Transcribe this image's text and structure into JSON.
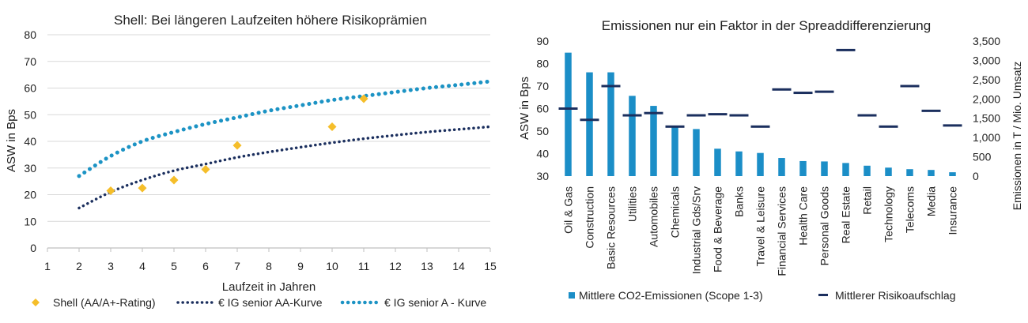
{
  "colors": {
    "diamond": "#F5BE2A",
    "aa_curve": "#1B2F5E",
    "a_curve": "#1C93C4",
    "bar": "#1B8EC7",
    "spread_mark": "#1B2F5E",
    "axis_line": "#BFBFBF",
    "grid": "#D9D9D9",
    "text": "#222222"
  },
  "chart_data": [
    {
      "type": "scatter",
      "title": "Shell: Bei längeren Laufzeiten höhere Risikoprämien",
      "xlabel": "Laufzeit in Jahren",
      "ylabel": "ASW in Bps",
      "xlim": [
        1,
        15
      ],
      "ylim": [
        0,
        80
      ],
      "xticks": [
        1,
        2,
        3,
        4,
        5,
        6,
        7,
        8,
        9,
        10,
        11,
        12,
        13,
        14,
        15
      ],
      "yticks": [
        0,
        10,
        20,
        30,
        40,
        50,
        60,
        70,
        80
      ],
      "grid": true,
      "legend_position": "bottom",
      "series": [
        {
          "name": "Shell (AA/A+-Rating)",
          "kind": "points",
          "x": [
            3,
            4,
            5,
            6,
            7,
            10,
            11
          ],
          "y": [
            21.5,
            22.5,
            25.5,
            29.5,
            38.5,
            45.5,
            56
          ]
        },
        {
          "name": "€ IG senior AA-Kurve",
          "kind": "dotted-line",
          "x": [
            2,
            3,
            4,
            5,
            6,
            7,
            8,
            9,
            10,
            11,
            12,
            13,
            14,
            15
          ],
          "y": [
            15,
            21,
            25.5,
            29,
            31.5,
            34,
            36,
            37.8,
            39.5,
            41,
            42.3,
            43.5,
            44.5,
            45.5
          ]
        },
        {
          "name": "€ IG senior A - Kurve",
          "kind": "dotted-line",
          "x": [
            2,
            3,
            4,
            5,
            6,
            7,
            8,
            9,
            10,
            11,
            12,
            13,
            14,
            15
          ],
          "y": [
            27,
            34.5,
            40,
            43.5,
            46.5,
            49,
            51.5,
            53.5,
            55.5,
            57,
            58.5,
            60,
            61.2,
            62.5
          ]
        }
      ]
    },
    {
      "type": "bar",
      "title": "Emissionen nur ein Faktor in der Spreaddifferenzierung",
      "ylabel": "ASW in Bps",
      "y2label": "Emissionen in T / Mio. Umsatz",
      "ylim": [
        30,
        90
      ],
      "y2lim": [
        0,
        3500
      ],
      "yticks": [
        30,
        40,
        50,
        60,
        70,
        80,
        90
      ],
      "y2ticks": [
        "0",
        "500",
        "1,000",
        "1,500",
        "2,000",
        "2,500",
        "3,000",
        "3,500"
      ],
      "y2tick_values": [
        0,
        500,
        1000,
        1500,
        2000,
        2500,
        3000,
        3500
      ],
      "grid": false,
      "legend_position": "bottom",
      "categories": [
        "Oil & Gas",
        "Construction",
        "Basic Resources",
        "Utilities",
        "Automobiles",
        "Chemicals",
        "Industrial Gds/Srv",
        "Food & Beverage",
        "Banks",
        "Travel & Leisure",
        "Financial Services",
        "Health Care",
        "Personal Goods",
        "Real Estate",
        "Retail",
        "Technology",
        "Telecoms",
        "Media",
        "Insurance"
      ],
      "series": [
        {
          "name": "Mittlere CO2-Emissionen (Scope 1-3)",
          "kind": "bar",
          "axis": "y2",
          "values": [
            3200,
            2690,
            2690,
            2080,
            1820,
            1300,
            1220,
            710,
            640,
            600,
            470,
            390,
            380,
            340,
            270,
            220,
            180,
            160,
            100
          ]
        },
        {
          "name": "Mittlerer Risikoaufschlag",
          "kind": "dash",
          "axis": "y",
          "values": [
            60,
            55,
            70,
            57,
            58,
            52,
            57,
            57.5,
            57,
            52,
            68.5,
            67,
            67.5,
            86,
            57,
            52,
            70,
            59,
            52.5
          ]
        }
      ]
    }
  ]
}
